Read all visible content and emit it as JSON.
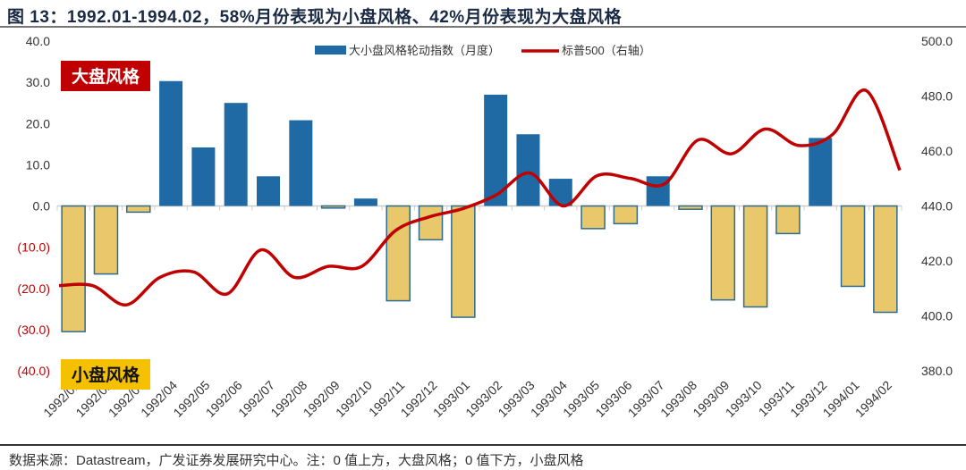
{
  "title": "图 13：1992.01-1994.02，58%月份表现为小盘风格、42%月份表现为大盘风格",
  "footer": "数据来源：Datastream，广发证券发展研究中心。注：0 值上方，大盘风格；0 值下方，小盘风格",
  "annotations": {
    "large_cap": "大盘风格",
    "small_cap": "小盘风格"
  },
  "colors": {
    "bar_positive": "#1f6aa5",
    "bar_negative": "#e8c86a",
    "bar_negative_border": "#2e6b8f",
    "line": "#c00000",
    "large_tag": "#c00000",
    "small_tag": "#f5c000"
  },
  "chart_data": {
    "type": "bar+line",
    "categories": [
      "1992/01",
      "1992/02",
      "1992/03",
      "1992/04",
      "1992/05",
      "1992/06",
      "1992/07",
      "1992/08",
      "1992/09",
      "1992/10",
      "1992/11",
      "1992/12",
      "1993/01",
      "1993/02",
      "1993/03",
      "1993/04",
      "1993/05",
      "1993/06",
      "1993/07",
      "1993/08",
      "1993/09",
      "1993/10",
      "1993/11",
      "1993/12",
      "1994/01",
      "1994/02"
    ],
    "series": [
      {
        "name": "大小盘风格轮动指数（月度）",
        "type": "bar",
        "axis": "left",
        "values": [
          -30.5,
          -16.5,
          -1.5,
          30.3,
          14.2,
          25.0,
          7.2,
          20.8,
          -0.5,
          1.8,
          -23.0,
          -8.2,
          -27.0,
          27.0,
          17.4,
          6.6,
          -5.5,
          -4.3,
          7.2,
          -0.8,
          -22.8,
          -24.5,
          -6.7,
          16.5,
          -19.5,
          -25.8
        ]
      },
      {
        "name": "标普500（右轴）",
        "type": "line",
        "axis": "right",
        "values": [
          411,
          411,
          404,
          414,
          416,
          408,
          424,
          414,
          418,
          418,
          431,
          436,
          439,
          444,
          452,
          440,
          451,
          450,
          448,
          464,
          459,
          468,
          462,
          466,
          482,
          453
        ]
      }
    ],
    "left_axis": {
      "range": [
        -40,
        40
      ],
      "ticks": [
        "40.0",
        "30.0",
        "20.0",
        "10.0",
        "0.0",
        "(10.0)",
        "(20.0)",
        "(30.0)",
        "(40.0)"
      ],
      "tick_values": [
        40,
        30,
        20,
        10,
        0,
        -10,
        -20,
        -30,
        -40
      ]
    },
    "right_axis": {
      "range": [
        380,
        500
      ],
      "ticks": [
        "500.0",
        "480.0",
        "460.0",
        "440.0",
        "420.0",
        "400.0",
        "380.0"
      ],
      "tick_values": [
        500,
        480,
        460,
        440,
        420,
        400,
        380
      ]
    },
    "legend_placement": "top-center"
  }
}
